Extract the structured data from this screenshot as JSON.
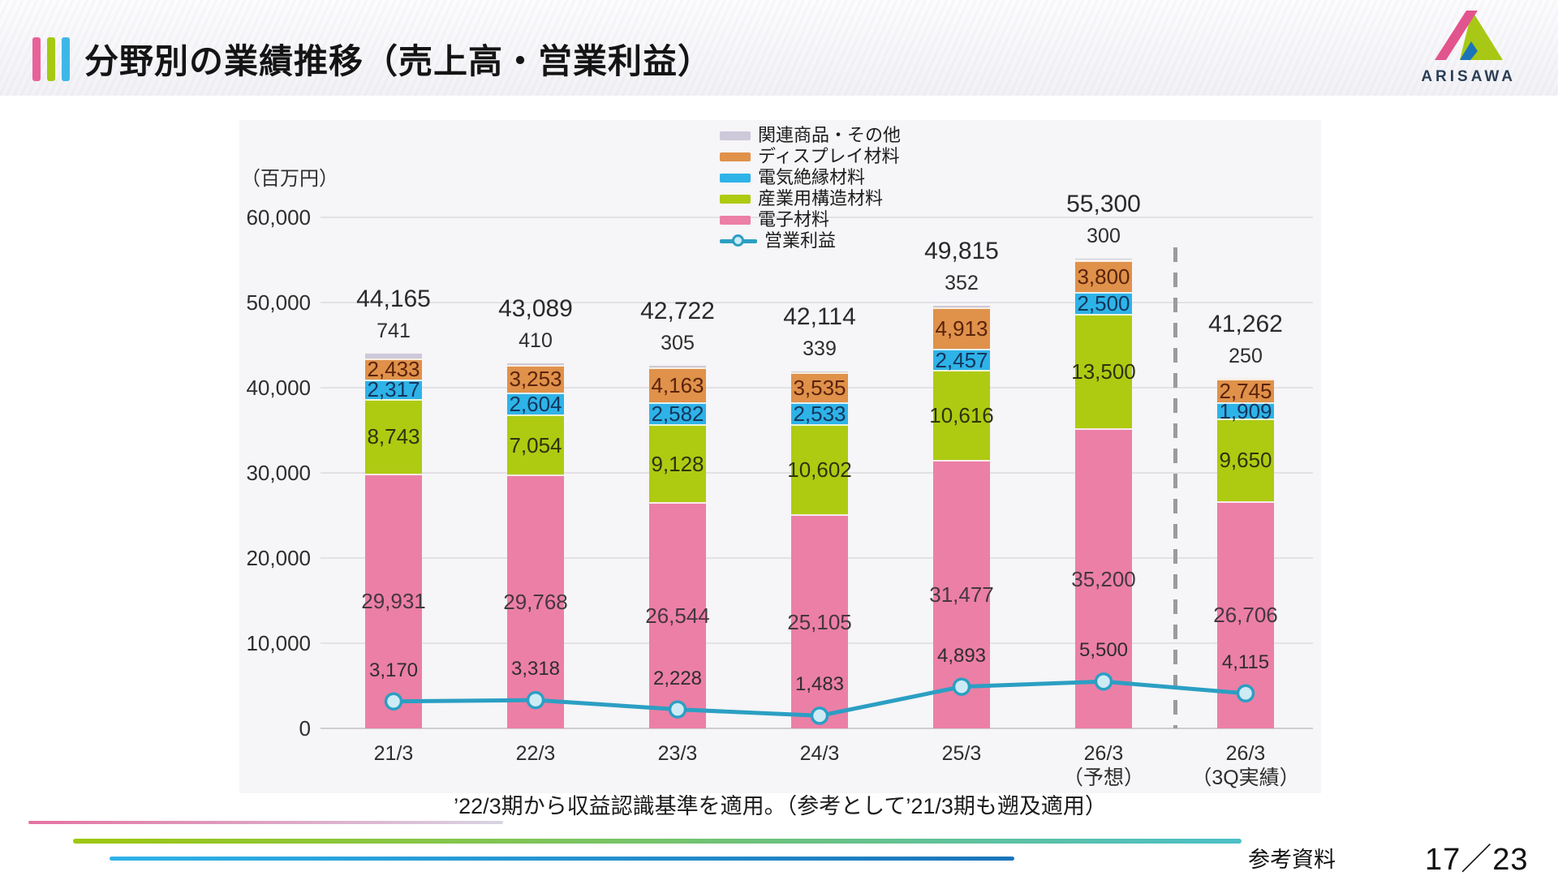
{
  "header": {
    "title": "分野別の業績推移（売上高・営業利益）",
    "logo_text": "ARISAWA"
  },
  "chart_data": {
    "type": "bar",
    "subtype": "stacked-bar-with-line-overlay",
    "title": "分野別の業績推移（売上高・営業利益）",
    "unit_label": "（百万円）",
    "ylim": [
      0,
      60000
    ],
    "yticks": [
      0,
      10000,
      20000,
      30000,
      40000,
      50000,
      60000
    ],
    "grid": true,
    "legend_position": "top-center",
    "categories": [
      {
        "label": "21/3",
        "sub": ""
      },
      {
        "label": "22/3",
        "sub": ""
      },
      {
        "label": "23/3",
        "sub": ""
      },
      {
        "label": "24/3",
        "sub": ""
      },
      {
        "label": "25/3",
        "sub": ""
      },
      {
        "label": "26/3",
        "sub": "（予想）"
      },
      {
        "label": "26/3",
        "sub": "（3Q実績）"
      }
    ],
    "series": [
      {
        "name": "電子材料",
        "color": "#ec7fa6",
        "label_color": "#463740",
        "values": [
          29931,
          29768,
          26544,
          25105,
          31477,
          35200,
          26706
        ]
      },
      {
        "name": "産業用構造材料",
        "color": "#aecb12",
        "label_color": "#2e3310",
        "values": [
          8743,
          7054,
          9128,
          10602,
          10616,
          13500,
          9650
        ]
      },
      {
        "name": "電気絶縁材料",
        "color": "#2eb3e8",
        "label_color": "#14365c",
        "values": [
          2317,
          2604,
          2582,
          2533,
          2457,
          2500,
          1909
        ]
      },
      {
        "name": "ディスプレイ材料",
        "color": "#e0914a",
        "label_color": "#5a230b",
        "values": [
          2433,
          3253,
          4163,
          3535,
          4913,
          3800,
          2745
        ]
      },
      {
        "name": "関連商品・その他",
        "color": "#cdc8da",
        "label_color": null,
        "show_labels": false,
        "values": [
          741,
          410,
          305,
          339,
          352,
          300,
          250
        ]
      }
    ],
    "totals": [
      44165,
      43089,
      42722,
      42114,
      49815,
      55300,
      41262
    ],
    "line_series": {
      "name": "営業利益",
      "color": "#2b9fc3",
      "marker_fill": "#cdebf5",
      "values": [
        3170,
        3318,
        2228,
        1483,
        4893,
        5500,
        4115
      ]
    },
    "separator_after_index": 5,
    "note": "’22/3期から収益認識基準を適用。（参考として’21/3期も遡及適用）"
  },
  "footer": {
    "label": "参考資料",
    "page": "17／23"
  }
}
